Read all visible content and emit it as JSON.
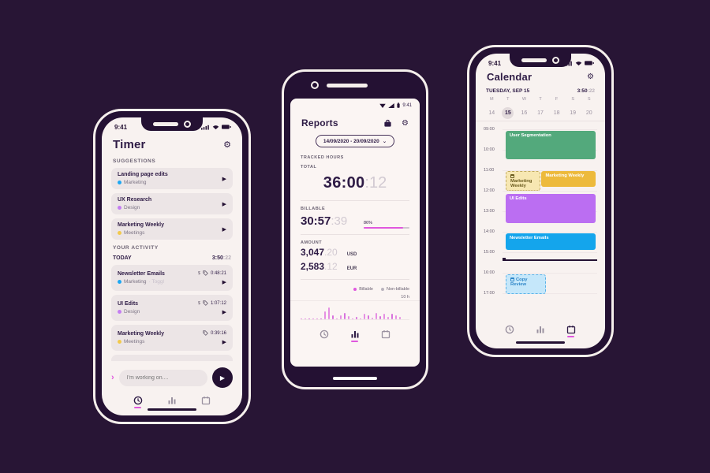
{
  "icons": {
    "gear": "⚙",
    "play": "▶",
    "chevron_right": "›",
    "chevron_down": "⌄"
  },
  "colors": {
    "background": "#281535",
    "accent_pink": "#e058de",
    "screen": "#f8f2f0"
  },
  "timer": {
    "status_time": "9:41",
    "title": "Timer",
    "suggestions_label": "SUGGESTIONS",
    "suggestions": [
      {
        "title": "Landing page edits",
        "project": "Marketing",
        "dot_color": "#1ea7f2"
      },
      {
        "title": "UX Research",
        "project": "Design",
        "dot_color": "#c47ef2"
      },
      {
        "title": "Marketing Weekly",
        "project": "Meetings",
        "dot_color": "#f2c94c"
      }
    ],
    "activity_label": "YOUR ACTIVITY",
    "today_label": "TODAY",
    "today_total_main": "3:50",
    "today_total_sec": ":22",
    "entries": [
      {
        "title": "Newsletter Emails",
        "project": "Marketing",
        "extra_tag": "· Toggl",
        "dot_color": "#1ea7f2",
        "billable": "$",
        "duration": "0:48:21"
      },
      {
        "title": "UI Edits",
        "project": "Design",
        "extra_tag": "",
        "dot_color": "#c47ef2",
        "billable": "$",
        "duration": "1:07:12"
      },
      {
        "title": "Marketing Weekly",
        "project": "Meetings",
        "extra_tag": "",
        "dot_color": "#f2c94c",
        "billable": "",
        "duration": "0:39:16"
      }
    ],
    "input_placeholder": "I'm working on...."
  },
  "reports": {
    "status_time": "9:41",
    "title": "Reports",
    "date_range": "14/09/2020 - 20/09/2020",
    "tracked_hours_label": "TRACKED HOURS",
    "total_label": "TOTAL",
    "total_main": "36:00",
    "total_sec": ":12",
    "billable_label": "BILLABLE",
    "billable_main": "30:57",
    "billable_sec": ":39",
    "billable_percent": "86%",
    "amount_label": "AMOUNT",
    "amounts": [
      {
        "main": "3,047",
        "dec": ".20",
        "currency": "USD"
      },
      {
        "main": "2,583",
        "dec": ".12",
        "currency": "EUR"
      }
    ],
    "legend": [
      {
        "label": "Billable",
        "color": "#e058de"
      },
      {
        "label": "Non-billable",
        "color": "#b9b3bd"
      }
    ],
    "axis_label": "10 h"
  },
  "chart_data": {
    "type": "bar",
    "title": "Tracked hours mini chart (Reports screen)",
    "ylabel": "hours",
    "ylim": [
      0,
      10
    ],
    "legend": [
      "Billable",
      "Non-billable"
    ],
    "values": [
      0,
      0,
      0,
      0,
      0,
      0,
      4.5,
      7,
      2.5,
      0,
      2.5,
      3.5,
      2,
      0,
      1.5,
      0,
      3,
      2.5,
      1,
      3.5,
      2,
      3,
      1.5,
      3,
      2.5,
      1.5
    ]
  },
  "calendar": {
    "status_time": "9:41",
    "title": "Calendar",
    "date_label": "TUESDAY, SEP 15",
    "day_total_main": "3:50",
    "day_total_sec": ":22",
    "weekdays": [
      "M",
      "T",
      "W",
      "T",
      "F",
      "S",
      "S"
    ],
    "dates": [
      "14",
      "15",
      "16",
      "17",
      "18",
      "19",
      "20"
    ],
    "hours": [
      "09:00",
      "10:00",
      "11:00",
      "12:00",
      "13:00",
      "14:00",
      "15:00",
      "16:00",
      "17:00"
    ],
    "events": [
      {
        "title": "User Segmentation",
        "color": "#53a97c",
        "text": "#ffffff"
      },
      {
        "title": "Marketing Weekly",
        "color": "#f7e7b2",
        "text": "#6a5a1e"
      },
      {
        "title": "Marketing Weekly",
        "color": "#edba3c",
        "text": "#ffffff"
      },
      {
        "title": "UI Edits",
        "color": "#bb6ef2",
        "text": "#ffffff"
      },
      {
        "title": "Newsletter Emails",
        "color": "#14a5ec",
        "text": "#ffffff"
      },
      {
        "title": "Copy Review",
        "color": "#c5e7fa",
        "text": "#2f86c7"
      }
    ]
  }
}
